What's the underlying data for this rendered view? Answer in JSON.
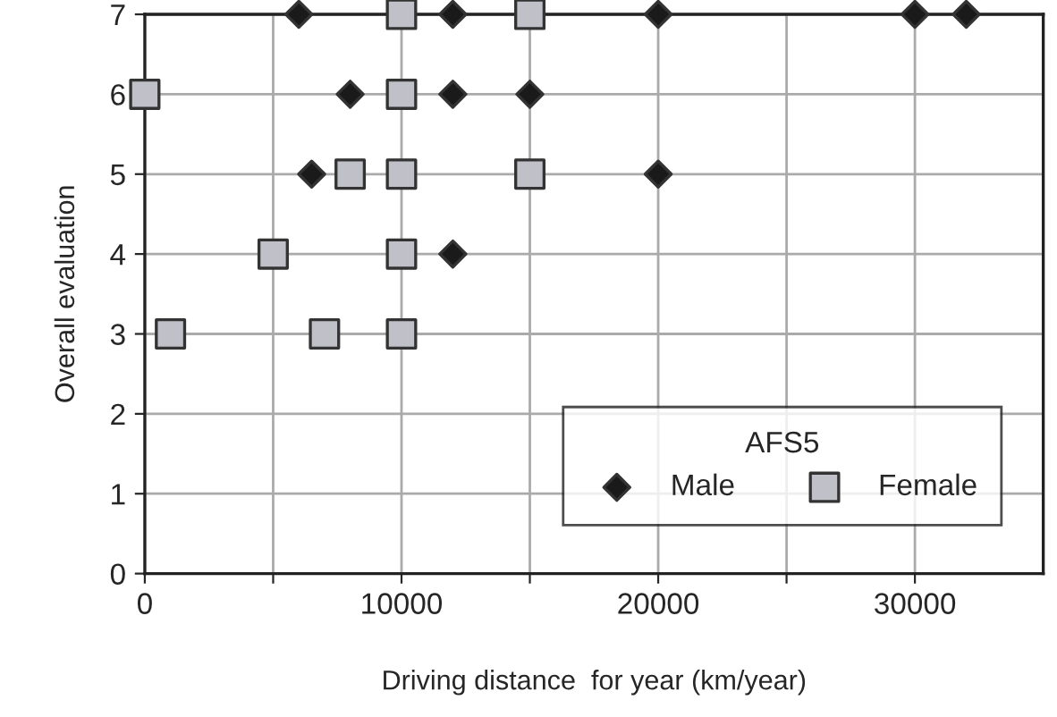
{
  "chart_data": {
    "type": "scatter",
    "xlabel": "Driving distance  for year (km/year)",
    "ylabel": "Overall evaluation",
    "legend_title": "AFS5",
    "xlim": [
      0,
      35000
    ],
    "xticks": [
      0,
      {
        "value": 5000,
        "label": null
      },
      10000,
      {
        "value": 15000,
        "label": null
      },
      20000,
      {
        "value": 25000,
        "label": null
      },
      30000
    ],
    "ylim": [
      0,
      7
    ],
    "yticks": [
      0,
      1,
      2,
      3,
      4,
      5,
      6,
      7
    ],
    "grid": true,
    "legend": "bottom right",
    "series": [
      {
        "name": "Male",
        "color": "#1a1a1a",
        "marker": "diamond",
        "x": [
          6000,
          12000,
          20000,
          30000,
          32000,
          8000,
          12000,
          15000,
          6500,
          20000,
          12000
        ],
        "values": [
          7,
          7,
          7,
          7,
          7,
          6,
          6,
          6,
          5,
          5,
          4
        ]
      },
      {
        "name": "Female",
        "color": "#c0c0c8",
        "marker": "square",
        "x": [
          10000,
          15000,
          0,
          10000,
          8000,
          10000,
          15000,
          5000,
          10000,
          1000,
          7000,
          10000
        ],
        "values": [
          7,
          7,
          6,
          6,
          5,
          5,
          5,
          4,
          4,
          3,
          3,
          3
        ]
      }
    ]
  }
}
